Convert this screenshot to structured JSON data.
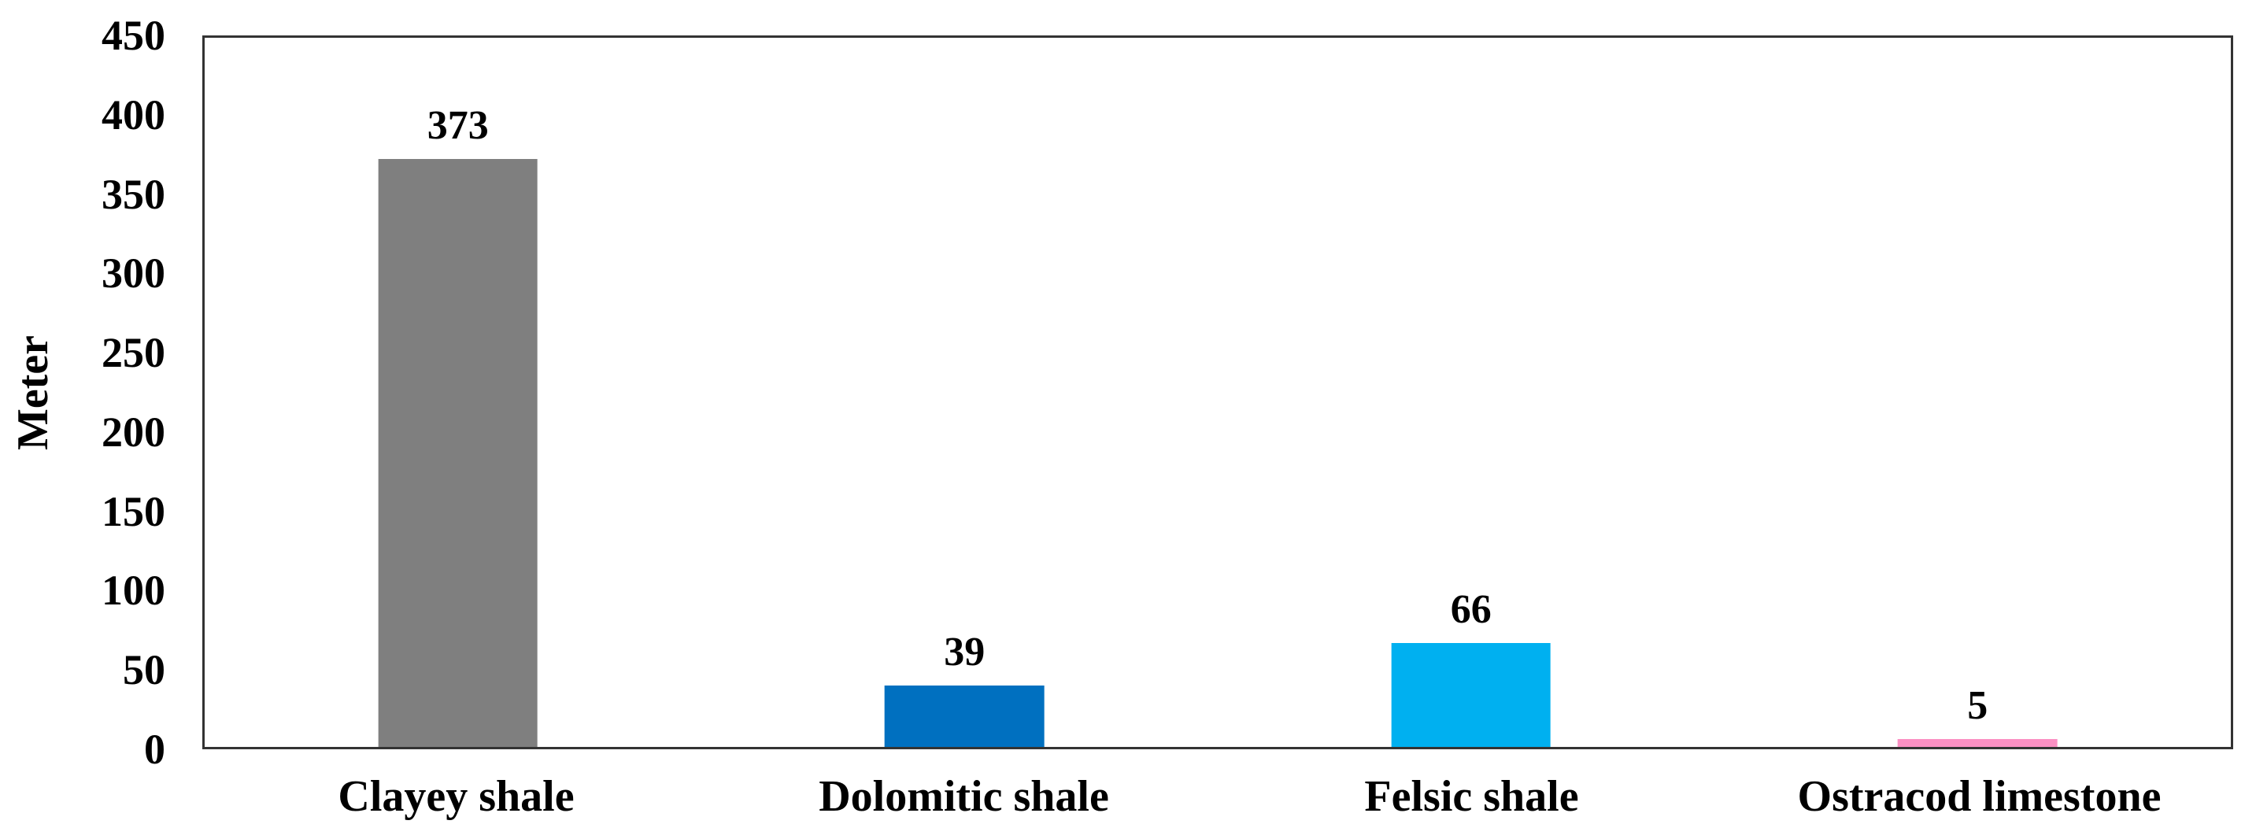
{
  "chart_data": {
    "type": "bar",
    "title": "",
    "xlabel": "",
    "ylabel": "Meter",
    "categories": [
      "Clayey shale",
      "Dolomitic shale",
      "Felsic shale",
      "Ostracod limestone"
    ],
    "values": [
      373,
      39,
      66,
      5
    ],
    "bar_labels": [
      "373",
      "39",
      "66",
      "5"
    ],
    "bar_colors": [
      "#7f7f7f",
      "#0070c0",
      "#00b0f0",
      "#fb90c3"
    ],
    "ylim": [
      0,
      450
    ],
    "yticks": [
      0,
      50,
      100,
      150,
      200,
      250,
      300,
      350,
      400,
      450
    ],
    "grid": "off",
    "legend": "none",
    "axis_line_color": "#333333",
    "text_color": "#000000",
    "background_color": "#ffffff"
  }
}
